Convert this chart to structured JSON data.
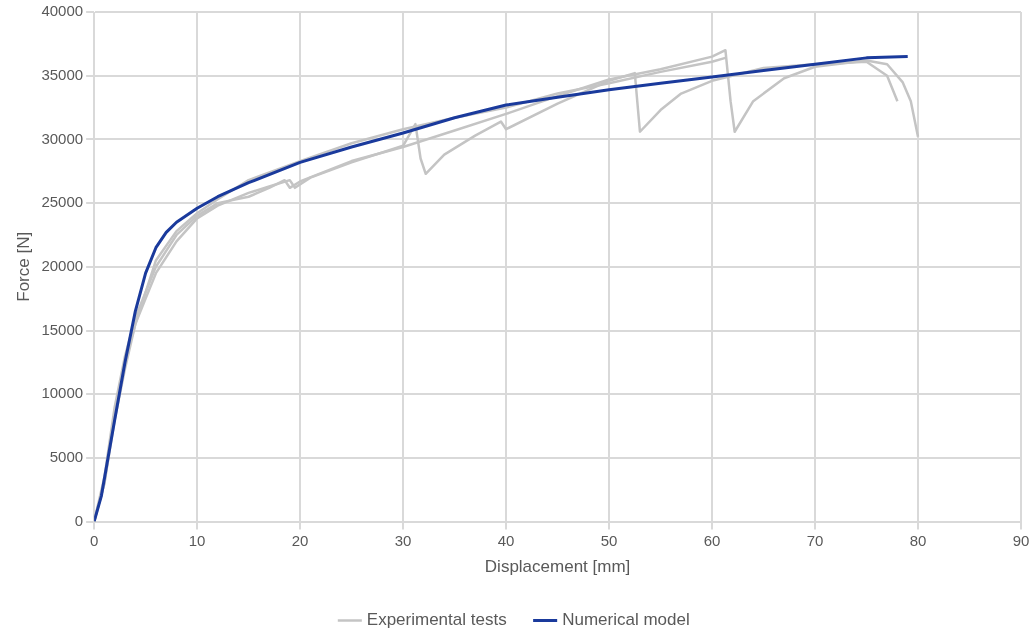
{
  "chart_data": {
    "type": "line",
    "xlabel": "Displacement [mm]",
    "ylabel": "Force [N]",
    "xlim": [
      0,
      90
    ],
    "xticks": [
      0,
      10,
      20,
      30,
      40,
      50,
      60,
      70,
      80,
      90
    ],
    "ylim": [
      0,
      40000
    ],
    "yticks": [
      0,
      5000,
      10000,
      15000,
      20000,
      25000,
      30000,
      35000,
      40000
    ],
    "grid": true,
    "legend": "bottom",
    "marker": "none",
    "line_style": "solid",
    "series": [
      {
        "name": "Experimental tests",
        "color": "#c4c4c4",
        "x": [
          0,
          1,
          2,
          3,
          4,
          5,
          6,
          8,
          10,
          12,
          15,
          17,
          19,
          19.5,
          21,
          25,
          30,
          31.2,
          31.7,
          32.2,
          34,
          37,
          39.5,
          40,
          45,
          50,
          52.5,
          53,
          55,
          57,
          60,
          65,
          70,
          75,
          77,
          78
        ],
        "values": [
          0,
          3000,
          8500,
          12500,
          15500,
          17500,
          19500,
          22000,
          23800,
          24800,
          25800,
          26300,
          26800,
          26200,
          27000,
          28200,
          29500,
          31200,
          28500,
          27300,
          28800,
          30300,
          31400,
          30800,
          32800,
          34600,
          35200,
          30600,
          32300,
          33600,
          34600,
          35600,
          35900,
          36100,
          35000,
          33000
        ]
      },
      {
        "color": "#c4c4c4",
        "x": [
          0,
          1,
          2,
          3,
          4,
          5,
          6,
          8,
          10,
          12,
          15,
          17,
          18.5,
          19,
          20,
          25,
          30,
          35,
          40,
          45,
          50,
          55,
          60,
          61.3,
          61.8,
          62.2,
          64,
          67,
          70,
          75,
          77,
          78.5,
          79.3,
          80
        ],
        "values": [
          0,
          3500,
          9000,
          13000,
          16000,
          18000,
          20000,
          22500,
          24000,
          25000,
          25500,
          26200,
          26800,
          26200,
          26700,
          28300,
          29400,
          30700,
          32000,
          33400,
          34700,
          35500,
          36500,
          37000,
          33000,
          30600,
          33000,
          34800,
          35700,
          36200,
          35900,
          34500,
          33000,
          30200
        ]
      },
      {
        "color": "#c4c4c4",
        "x": [
          0,
          1,
          2,
          3,
          4,
          5,
          6,
          8,
          10,
          12,
          15,
          20,
          25,
          30,
          35,
          40,
          45,
          50,
          55,
          60,
          61.3
        ],
        "values": [
          0,
          3000,
          8000,
          12000,
          15500,
          18000,
          20500,
          22800,
          24200,
          25300,
          26800,
          28300,
          29700,
          30800,
          31700,
          32500,
          33600,
          34400,
          35300,
          36100,
          36400
        ]
      },
      {
        "name": "Numerical model",
        "color": "#1a3a9c",
        "x": [
          0,
          0.7,
          2,
          3,
          4,
          5,
          6,
          7,
          8,
          10,
          12,
          15,
          20,
          25,
          30,
          35,
          40,
          45,
          50,
          55,
          60,
          65,
          70,
          75,
          79
        ],
        "values": [
          0,
          2000,
          8000,
          12500,
          16500,
          19500,
          21500,
          22700,
          23500,
          24600,
          25500,
          26600,
          28200,
          29400,
          30500,
          31700,
          32700,
          33300,
          33900,
          34400,
          34900,
          35400,
          35900,
          36400,
          36500
        ]
      }
    ]
  }
}
